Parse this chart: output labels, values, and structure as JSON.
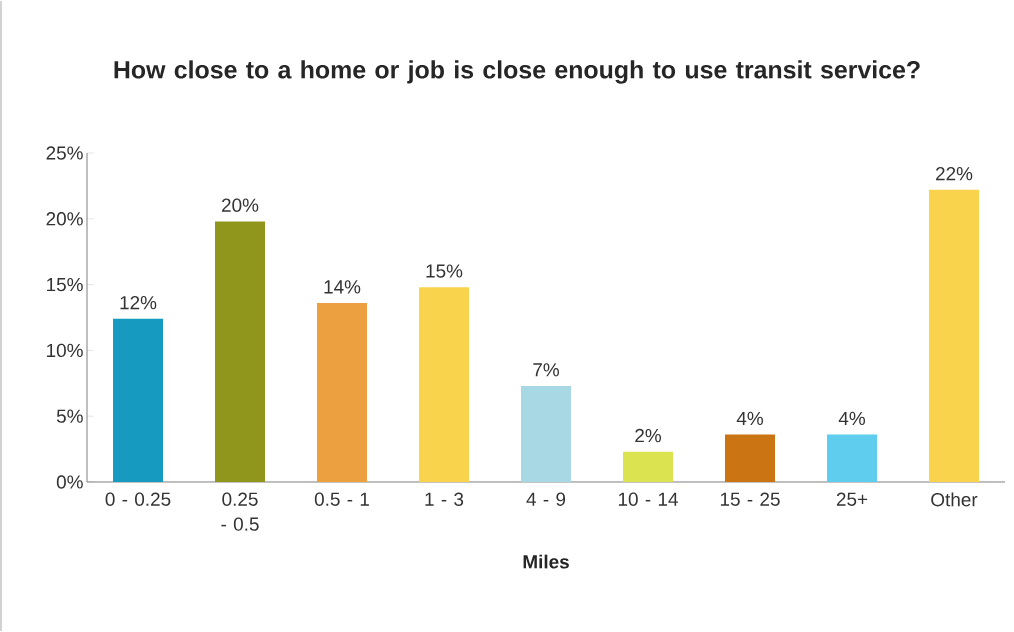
{
  "chart_data": {
    "type": "bar",
    "title": "How close to a home or job is close enough to use transit service?",
    "xlabel": "Miles",
    "categories": [
      "0 - 0.25",
      "0.25 - 0.5",
      "0.5 - 1",
      "1 - 3",
      "4 - 9",
      "10 - 14",
      "15 - 25",
      "25+",
      "Other"
    ],
    "values": [
      12.4,
      19.8,
      13.6,
      14.8,
      7.3,
      2.3,
      3.6,
      3.6,
      22.2
    ],
    "value_labels": [
      "12%",
      "20%",
      "14%",
      "15%",
      "7%",
      "2%",
      "4%",
      "4%",
      "22%"
    ],
    "colors": [
      "#169abf",
      "#8f961b",
      "#eca03f",
      "#f9d34c",
      "#a9d8e5",
      "#dce350",
      "#cb7414",
      "#5ecdee",
      "#f9d34c"
    ],
    "ylim": [
      0,
      25
    ],
    "yticks": [
      {
        "value": 0,
        "label": "0%"
      },
      {
        "value": 5,
        "label": "5%"
      },
      {
        "value": 10,
        "label": "10%"
      },
      {
        "value": 15,
        "label": "15%"
      },
      {
        "value": 20,
        "label": "20%"
      },
      {
        "value": 25,
        "label": "25%"
      }
    ],
    "grid": false
  }
}
